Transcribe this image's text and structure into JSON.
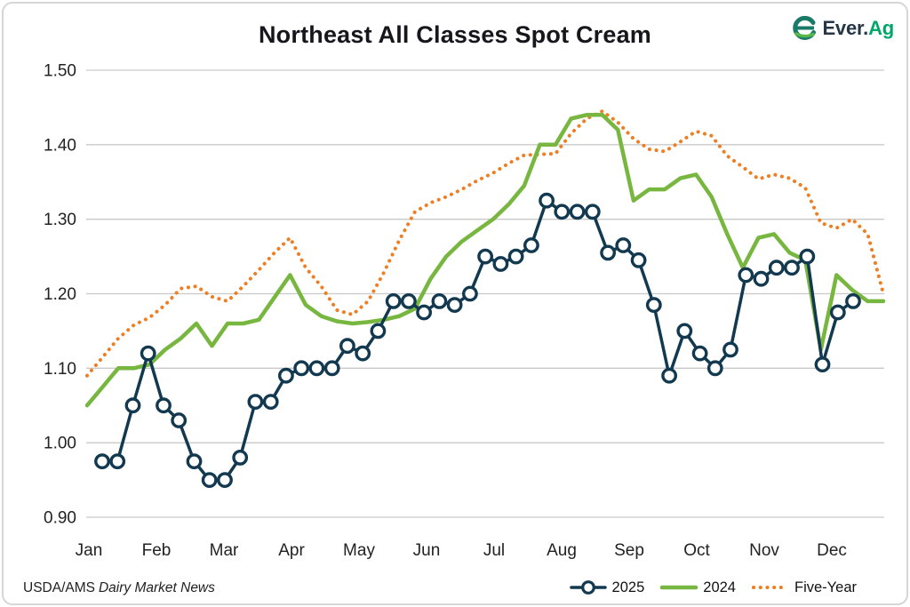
{
  "card": {
    "title": "Northeast All Classes Spot Cream",
    "source_prefix": "USDA/AMS",
    "source_italic": "Dairy Market News"
  },
  "logo": {
    "text_primary": "Ever.",
    "text_secondary": "Ag",
    "navy": "#253746",
    "green": "#00A76D",
    "mark_teal": "#1A7A68",
    "mark_green": "#59B947"
  },
  "legend": {
    "position": "bottom-right"
  },
  "chart_data": {
    "type": "line",
    "title": "Northeast All Classes Spot Cream",
    "xlabel": "",
    "ylabel": "",
    "x_axis": {
      "unit": "weeks (Jan-Dec)",
      "tick_labels": [
        "Jan",
        "Feb",
        "Mar",
        "Apr",
        "May",
        "Jun",
        "Jul",
        "Aug",
        "Sep",
        "Oct",
        "Nov",
        "Dec"
      ]
    },
    "y_axis": {
      "min": 0.9,
      "max": 1.5,
      "tick_step": 0.1,
      "tick_labels": [
        "1.50",
        "1.40",
        "1.30",
        "1.20",
        "1.10",
        "1.00",
        "0.90"
      ]
    },
    "grid": "horizontal-only",
    "grid_color": "#c9c9c9",
    "legend_position": "bottom-right",
    "series": [
      {
        "name": "2025",
        "color": "#12394F",
        "style": "line-markers",
        "marker": "open-circle",
        "width": 3.5,
        "z": 2,
        "weekly_values": [
          0.975,
          0.975,
          1.05,
          1.12,
          1.05,
          1.03,
          0.975,
          0.95,
          0.95,
          0.98,
          1.055,
          1.055,
          1.09,
          1.1,
          1.1,
          1.1,
          1.13,
          1.12,
          1.15,
          1.19,
          1.19,
          1.175,
          1.19,
          1.185,
          1.2,
          1.25,
          1.24,
          1.25,
          1.265,
          1.325,
          1.31,
          1.31,
          1.31,
          1.255,
          1.265,
          1.245,
          1.185,
          1.09,
          1.15,
          1.12,
          1.1,
          1.125,
          1.225,
          1.22,
          1.235,
          1.235,
          1.25,
          1.105,
          1.175,
          1.19
        ]
      },
      {
        "name": "2024",
        "color": "#77B63F",
        "style": "solid",
        "width": 4.5,
        "z": 1,
        "weekly_values": [
          1.05,
          1.075,
          1.1,
          1.1,
          1.105,
          1.125,
          1.14,
          1.16,
          1.13,
          1.16,
          1.16,
          1.165,
          1.195,
          1.225,
          1.185,
          1.17,
          1.163,
          1.16,
          1.162,
          1.165,
          1.17,
          1.18,
          1.22,
          1.25,
          1.27,
          1.285,
          1.3,
          1.32,
          1.345,
          1.4,
          1.4,
          1.435,
          1.44,
          1.44,
          1.42,
          1.325,
          1.34,
          1.34,
          1.355,
          1.36,
          1.33,
          1.28,
          1.235,
          1.275,
          1.28,
          1.255,
          1.245,
          1.125,
          1.225,
          1.205,
          1.19,
          1.19
        ]
      },
      {
        "name": "Five-Year",
        "color": "#EF7D22",
        "style": "dotted",
        "width": 4,
        "z": 0,
        "weekly_values": [
          1.09,
          1.115,
          1.14,
          1.158,
          1.168,
          1.185,
          1.207,
          1.21,
          1.196,
          1.19,
          1.21,
          1.232,
          1.255,
          1.275,
          1.235,
          1.21,
          1.178,
          1.172,
          1.19,
          1.228,
          1.272,
          1.31,
          1.322,
          1.33,
          1.34,
          1.352,
          1.362,
          1.375,
          1.386,
          1.387,
          1.388,
          1.415,
          1.435,
          1.445,
          1.43,
          1.408,
          1.394,
          1.391,
          1.404,
          1.418,
          1.412,
          1.385,
          1.37,
          1.354,
          1.36,
          1.355,
          1.342,
          1.295,
          1.288,
          1.3,
          1.28,
          1.2
        ]
      }
    ]
  }
}
